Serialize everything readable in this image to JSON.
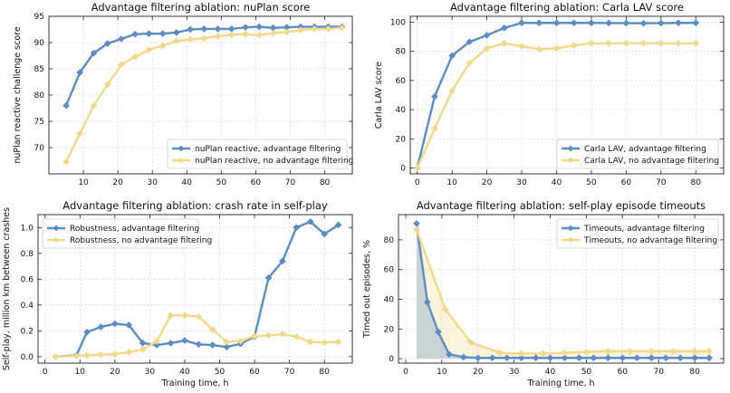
{
  "colors": {
    "with_filtering": "#5b8cc2",
    "without_filtering": "#f2d98a"
  },
  "chart_data": [
    {
      "type": "line",
      "title": "Advantage filtering ablation: nuPlan score",
      "xlabel": "",
      "ylabel": "nuPlan reactive challenge score",
      "xlim": [
        0,
        88
      ],
      "ylim": [
        65,
        95
      ],
      "xticks": [
        10,
        20,
        30,
        40,
        50,
        60,
        70,
        80
      ],
      "yticks": [
        70,
        75,
        80,
        85,
        90,
        95
      ],
      "legend_position": "lower-right",
      "fill_under": false,
      "series": [
        {
          "name": "nuPlan reactive, advantage filtering",
          "color_key": "with_filtering",
          "x": [
            5,
            9,
            13,
            17,
            21,
            25,
            29,
            33,
            37,
            41,
            45,
            49,
            53,
            57,
            61,
            65,
            69,
            73,
            77,
            81,
            85
          ],
          "y": [
            78,
            84.3,
            88,
            89.8,
            90.7,
            91.6,
            91.7,
            91.7,
            91.9,
            92.5,
            92.6,
            92.6,
            92.6,
            92.9,
            93,
            92.8,
            92.9,
            93,
            93,
            93,
            93
          ]
        },
        {
          "name": "nuPlan reactive, no advantage filtering",
          "color_key": "without_filtering",
          "x": [
            5,
            9,
            13,
            17,
            21,
            25,
            29,
            33,
            37,
            41,
            45,
            49,
            53,
            57,
            61,
            65,
            69,
            73,
            77,
            81,
            85
          ],
          "y": [
            67.3,
            72.7,
            78,
            82,
            85.8,
            87.3,
            88.6,
            89.4,
            90.3,
            90.6,
            90.8,
            91.2,
            91.5,
            91.6,
            91.4,
            91.8,
            92,
            92.4,
            92.6,
            92.6,
            92.8
          ]
        }
      ]
    },
    {
      "type": "line",
      "title": "Advantage filtering ablation: Carla LAV score",
      "xlabel": "",
      "ylabel": "Carla LAV score",
      "xlim": [
        -2,
        88
      ],
      "ylim": [
        -4,
        104
      ],
      "xticks": [
        0,
        10,
        20,
        30,
        40,
        50,
        60,
        70,
        80
      ],
      "yticks": [
        0,
        20,
        40,
        60,
        80,
        100
      ],
      "legend_position": "lower-right",
      "fill_under": false,
      "series": [
        {
          "name": "Carla LAV, advantage filtering",
          "color_key": "with_filtering",
          "x": [
            0,
            5,
            10,
            15,
            20,
            25,
            30,
            35,
            40,
            45,
            50,
            55,
            60,
            65,
            70,
            75,
            80
          ],
          "y": [
            0,
            49,
            77,
            86.5,
            91,
            96,
            99.5,
            99.5,
            99.5,
            99.5,
            99.5,
            99.4,
            99.3,
            99.2,
            99.3,
            99.5,
            99.5
          ]
        },
        {
          "name": "Carla LAV, no advantage filtering",
          "color_key": "without_filtering",
          "x": [
            0,
            5,
            10,
            15,
            20,
            25,
            30,
            35,
            40,
            45,
            50,
            55,
            60,
            65,
            70,
            75,
            80
          ],
          "y": [
            0,
            27,
            53,
            72,
            82,
            85.5,
            83.5,
            81.5,
            82,
            84,
            85.5,
            85.5,
            85.5,
            85.5,
            85.5,
            85.5,
            85.5
          ]
        }
      ]
    },
    {
      "type": "line",
      "title": "Advantage filtering ablation: crash rate in self-play",
      "xlabel": "Training time, h",
      "ylabel": "Self-play, million km between crashes",
      "xlim": [
        -2,
        88
      ],
      "ylim": [
        -0.05,
        1.1
      ],
      "xticks": [
        0,
        10,
        20,
        30,
        40,
        50,
        60,
        70,
        80
      ],
      "yticks": [
        0.0,
        0.2,
        0.4,
        0.6,
        0.8,
        1.0
      ],
      "ytick_labels": [
        "0.0",
        "0.2",
        "0.4",
        "0.6",
        "0.8",
        "1.0"
      ],
      "legend_position": "top-left",
      "fill_under": false,
      "series": [
        {
          "name": "Robustness, advantage filtering",
          "color_key": "with_filtering",
          "x": [
            3,
            9,
            12,
            16,
            20,
            24,
            28,
            32,
            36,
            40,
            44,
            48,
            52,
            56,
            60,
            64,
            68,
            72,
            76,
            80,
            84
          ],
          "y": [
            0.0,
            0.01,
            0.19,
            0.23,
            0.255,
            0.245,
            0.105,
            0.09,
            0.105,
            0.125,
            0.095,
            0.09,
            0.075,
            0.1,
            0.155,
            0.61,
            0.74,
            1.0,
            1.045,
            0.95,
            1.02
          ]
        },
        {
          "name": "Robustness, no advantage filtering",
          "color_key": "without_filtering",
          "x": [
            3,
            9,
            12,
            16,
            20,
            24,
            28,
            32,
            36,
            40,
            44,
            48,
            52,
            56,
            60,
            64,
            68,
            72,
            76,
            80,
            84
          ],
          "y": [
            0.0,
            0.005,
            0.01,
            0.015,
            0.02,
            0.035,
            0.055,
            0.12,
            0.32,
            0.32,
            0.31,
            0.21,
            0.115,
            0.12,
            0.16,
            0.165,
            0.175,
            0.155,
            0.115,
            0.11,
            0.115
          ]
        }
      ]
    },
    {
      "type": "area",
      "title": "Advantage filtering ablation: self-play episode timeouts",
      "xlabel": "Training time, h",
      "ylabel": "Timed out episodes, %",
      "xlim": [
        -2,
        88
      ],
      "ylim": [
        -3,
        97
      ],
      "xticks": [
        0,
        10,
        20,
        30,
        40,
        50,
        60,
        70,
        80
      ],
      "yticks": [
        0,
        20,
        40,
        60,
        80
      ],
      "legend_position": "top-right",
      "fill_under": true,
      "series": [
        {
          "name": "Timeouts, advantage filtering",
          "color_key": "with_filtering",
          "x": [
            3,
            6,
            9,
            12,
            16,
            20,
            24,
            28,
            32,
            36,
            40,
            44,
            48,
            52,
            56,
            60,
            64,
            68,
            72,
            76,
            80,
            84
          ],
          "y": [
            91,
            38,
            18,
            3,
            1,
            0.5,
            0.5,
            0.5,
            0.5,
            0.5,
            0.5,
            0.5,
            0.5,
            0.5,
            0.5,
            0.5,
            0.5,
            0.5,
            0.5,
            0.5,
            0.5,
            0.5
          ]
        },
        {
          "name": "Timeouts, no advantage filtering",
          "color_key": "without_filtering",
          "x": [
            3,
            11,
            18,
            26,
            32,
            38,
            44,
            50,
            56,
            62,
            68,
            74,
            80,
            84
          ],
          "y": [
            87,
            33,
            11,
            4,
            3.5,
            3.5,
            4,
            4.5,
            5,
            5,
            5,
            5,
            5,
            5
          ]
        }
      ]
    }
  ]
}
